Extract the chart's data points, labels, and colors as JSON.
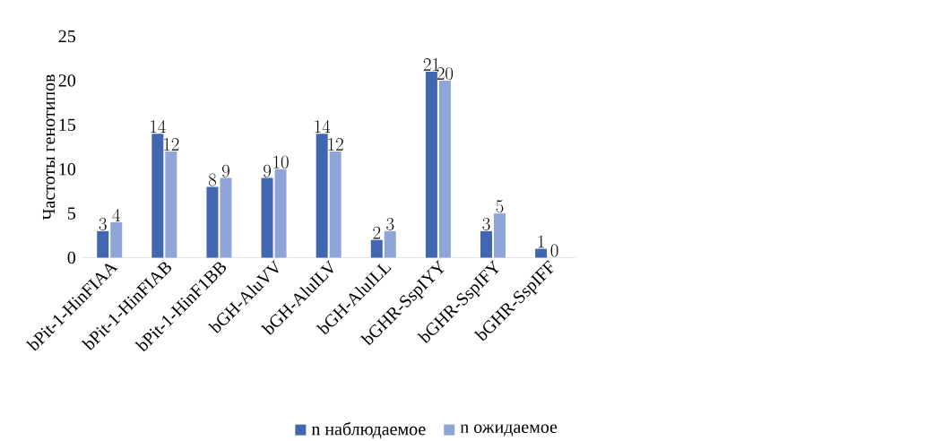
{
  "chart_data": {
    "type": "bar",
    "ylabel": "Частоты генотипов",
    "categories": [
      "bPit-1-HinFIAA",
      "bPit-1-HinFIAB",
      "bPit-1-HinF1BB",
      "bGH-AluVV",
      "bGH-AluILV",
      "bGH-AluILL",
      "bGHR-SspIYY",
      "bGHR-SspIFY",
      "bGHR-SspIFF"
    ],
    "series": [
      {
        "name": "n наблюдаемое",
        "color": "#4167b1",
        "values": [
          3,
          14,
          8,
          9,
          14,
          2,
          21,
          3,
          1
        ]
      },
      {
        "name": "n ожидаемое",
        "color": "#8fa5d8",
        "values": [
          4,
          12,
          9,
          10,
          12,
          3,
          20,
          5,
          0
        ]
      }
    ],
    "ylim": [
      0,
      25
    ],
    "yticks": [
      0,
      5,
      10,
      15,
      20,
      25
    ],
    "data_labels": true,
    "legend": "bottom",
    "grid": false
  }
}
